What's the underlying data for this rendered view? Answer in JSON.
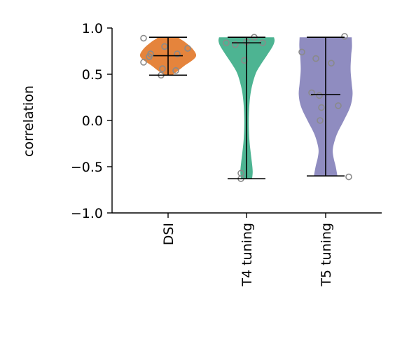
{
  "chart_data": {
    "type": "violin",
    "ylabel": "correlation",
    "ylim": [
      -1.0,
      1.0
    ],
    "yticks": [
      1.0,
      0.5,
      0.0,
      -0.5,
      -1.0
    ],
    "ytick_labels": [
      "1.0",
      "0.5",
      "0.0",
      "−0.5",
      "−1.0"
    ],
    "grid": false,
    "categories": [
      "DSI",
      "T4 tuning",
      "T5 tuning"
    ],
    "colors": [
      "#e5843c",
      "#4db492",
      "#8f8cc0"
    ],
    "series": [
      {
        "category": "DSI",
        "min": 0.49,
        "max": 0.9,
        "median": 0.7,
        "points": [
          0.89,
          0.63,
          0.69,
          0.72,
          0.8,
          0.56,
          0.49,
          0.54,
          0.72,
          0.78
        ],
        "density": [
          [
            0.49,
            0.15
          ],
          [
            0.52,
            0.28
          ],
          [
            0.56,
            0.45
          ],
          [
            0.6,
            0.62
          ],
          [
            0.64,
            0.82
          ],
          [
            0.68,
            0.97
          ],
          [
            0.71,
            1.0
          ],
          [
            0.74,
            0.96
          ],
          [
            0.78,
            0.86
          ],
          [
            0.82,
            0.72
          ],
          [
            0.86,
            0.55
          ],
          [
            0.88,
            0.44
          ],
          [
            0.9,
            0.36
          ]
        ]
      },
      {
        "category": "T4 tuning",
        "min": -0.63,
        "max": 0.9,
        "median": 0.84,
        "points": [
          0.84,
          0.82,
          0.85,
          0.9,
          0.84,
          0.65,
          -0.57,
          -0.63
        ],
        "density": [
          [
            -0.63,
            0.2
          ],
          [
            -0.55,
            0.22
          ],
          [
            -0.45,
            0.19
          ],
          [
            -0.35,
            0.15
          ],
          [
            -0.2,
            0.1
          ],
          [
            0.0,
            0.08
          ],
          [
            0.2,
            0.11
          ],
          [
            0.35,
            0.18
          ],
          [
            0.5,
            0.32
          ],
          [
            0.6,
            0.5
          ],
          [
            0.7,
            0.72
          ],
          [
            0.8,
            0.93
          ],
          [
            0.86,
            1.0
          ],
          [
            0.9,
            0.98
          ]
        ]
      },
      {
        "category": "T5 tuning",
        "min": -0.6,
        "max": 0.9,
        "median": 0.28,
        "points": [
          0.91,
          0.74,
          0.67,
          0.62,
          0.3,
          0.27,
          0.14,
          0.16,
          0.0,
          -0.61
        ],
        "density": [
          [
            -0.6,
            0.42
          ],
          [
            -0.5,
            0.36
          ],
          [
            -0.4,
            0.28
          ],
          [
            -0.3,
            0.26
          ],
          [
            -0.15,
            0.4
          ],
          [
            0.0,
            0.65
          ],
          [
            0.15,
            0.88
          ],
          [
            0.28,
            0.96
          ],
          [
            0.4,
            0.93
          ],
          [
            0.55,
            0.89
          ],
          [
            0.7,
            0.91
          ],
          [
            0.8,
            0.94
          ],
          [
            0.9,
            0.93
          ]
        ]
      }
    ]
  }
}
